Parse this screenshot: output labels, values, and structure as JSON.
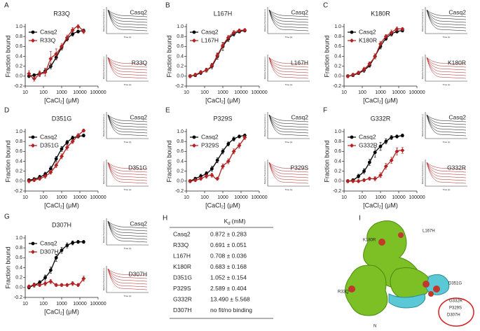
{
  "chart_data": [
    {
      "type": "line",
      "panel": "A",
      "title": "R33Q",
      "y_label": "Fraction bound",
      "x_label": "[CaCl₂] (μM)",
      "xscale": "log",
      "x": [
        16,
        31,
        62,
        125,
        250,
        500,
        1000,
        2000,
        4000,
        8000,
        16000
      ],
      "xlim": [
        10,
        100000
      ],
      "xticks": [
        10,
        100,
        1000,
        10000,
        100000
      ],
      "ylim": [
        -0.2,
        1.0
      ],
      "yticks": [
        -0.2,
        {
          "value": 0,
          "label": "0.0"
        },
        0.2,
        0.4,
        0.6,
        0.8,
        {
          "value": 1,
          "label": "1.0"
        }
      ],
      "series": [
        {
          "name": "Casq2",
          "color": "#000000",
          "marker": "circle",
          "values": [
            0.0,
            0.02,
            0.05,
            0.1,
            0.2,
            0.38,
            0.58,
            0.75,
            0.85,
            0.9,
            0.92
          ],
          "errors": [
            0.03,
            0.03,
            0.04,
            0.04,
            0.05,
            0.05,
            0.05,
            0.04,
            0.04,
            0.03,
            0.03
          ]
        },
        {
          "name": "R33Q",
          "color": "#b22222",
          "marker": "diamond",
          "values": [
            0.05,
            -0.05,
            0.05,
            0.08,
            0.35,
            0.45,
            0.6,
            0.78,
            0.93,
            1.0,
            0.9
          ],
          "errors": [
            0.06,
            0.05,
            0.06,
            0.08,
            0.15,
            0.1,
            0.06,
            0.05,
            0.05,
            0.04,
            0.04
          ]
        }
      ]
    },
    {
      "type": "line",
      "panel": "B",
      "title": "L167H",
      "y_label": "Fraction bound",
      "x_label": "[CaCl₂] (μM)",
      "xscale": "log",
      "x": [
        16,
        31,
        62,
        125,
        250,
        500,
        1000,
        2000,
        4000,
        8000,
        16000
      ],
      "xlim": [
        10,
        100000
      ],
      "xticks": [
        10,
        100,
        1000,
        10000,
        100000
      ],
      "ylim": [
        -0.2,
        1.0
      ],
      "yticks": [
        -0.2,
        {
          "value": 0,
          "label": "0.0"
        },
        0.2,
        0.4,
        0.6,
        0.8,
        {
          "value": 1,
          "label": "1.0"
        }
      ],
      "series": [
        {
          "name": "Casq2",
          "color": "#000000",
          "marker": "circle",
          "values": [
            0.0,
            0.02,
            0.07,
            0.12,
            0.2,
            0.4,
            0.6,
            0.75,
            0.85,
            0.9,
            0.92
          ],
          "errors": [
            0.03,
            0.03,
            0.04,
            0.04,
            0.05,
            0.06,
            0.08,
            0.05,
            0.04,
            0.03,
            0.03
          ]
        },
        {
          "name": "L167H",
          "color": "#b22222",
          "marker": "diamond",
          "values": [
            0.0,
            0.03,
            0.08,
            0.12,
            0.22,
            0.42,
            0.62,
            0.78,
            0.88,
            0.92,
            0.93
          ],
          "errors": [
            0.03,
            0.03,
            0.03,
            0.04,
            0.04,
            0.05,
            0.05,
            0.04,
            0.04,
            0.03,
            0.03
          ]
        }
      ]
    },
    {
      "type": "line",
      "panel": "C",
      "title": "K180R",
      "y_label": "Fraction bound",
      "x_label": "[CaCl₂] (μM)",
      "xscale": "log",
      "x": [
        16,
        31,
        62,
        125,
        250,
        500,
        1000,
        2000,
        4000,
        8000,
        16000
      ],
      "xlim": [
        10,
        100000
      ],
      "xticks": [
        10,
        100,
        1000,
        10000,
        100000
      ],
      "ylim": [
        -0.2,
        1.0
      ],
      "yticks": [
        -0.2,
        {
          "value": 0,
          "label": "0.0"
        },
        0.2,
        0.4,
        0.6,
        0.8,
        {
          "value": 1,
          "label": "1.0"
        }
      ],
      "series": [
        {
          "name": "Casq2",
          "color": "#000000",
          "marker": "circle",
          "values": [
            0.0,
            0.02,
            0.06,
            0.12,
            0.22,
            0.4,
            0.6,
            0.76,
            0.85,
            0.9,
            0.92
          ],
          "errors": [
            0.03,
            0.03,
            0.03,
            0.04,
            0.04,
            0.05,
            0.05,
            0.04,
            0.04,
            0.03,
            0.03
          ]
        },
        {
          "name": "K180R",
          "color": "#b22222",
          "marker": "diamond",
          "values": [
            0.0,
            0.03,
            0.07,
            0.14,
            0.25,
            0.4,
            0.65,
            0.8,
            0.88,
            0.95,
            0.95
          ],
          "errors": [
            0.03,
            0.03,
            0.03,
            0.04,
            0.04,
            0.05,
            0.05,
            0.04,
            0.05,
            0.04,
            0.03
          ]
        }
      ]
    },
    {
      "type": "line",
      "panel": "D",
      "title": "D351G",
      "y_label": "Fraction bound",
      "x_label": "[CaCl₂] (μM)",
      "xscale": "log",
      "x": [
        16,
        31,
        62,
        125,
        250,
        500,
        1000,
        2000,
        4000,
        8000,
        16000
      ],
      "xlim": [
        10,
        100000
      ],
      "xticks": [
        10,
        100,
        1000,
        10000,
        100000
      ],
      "ylim": [
        -0.2,
        1.0
      ],
      "yticks": [
        -0.2,
        {
          "value": 0,
          "label": "0.0"
        },
        0.2,
        0.4,
        0.6,
        0.8,
        {
          "value": 1,
          "label": "1.0"
        }
      ],
      "series": [
        {
          "name": "Casq2",
          "color": "#000000",
          "marker": "circle",
          "values": [
            0.02,
            0.04,
            0.08,
            0.14,
            0.25,
            0.45,
            0.65,
            0.78,
            0.87,
            0.9,
            0.92
          ],
          "errors": [
            0.03,
            0.03,
            0.04,
            0.04,
            0.05,
            0.05,
            0.05,
            0.04,
            0.04,
            0.03,
            0.03
          ]
        },
        {
          "name": "D351G",
          "color": "#b22222",
          "marker": "diamond",
          "values": [
            0.0,
            0.02,
            0.05,
            0.1,
            0.18,
            0.32,
            0.5,
            0.68,
            0.8,
            0.92,
            1.02
          ],
          "errors": [
            0.03,
            0.03,
            0.03,
            0.04,
            0.04,
            0.05,
            0.05,
            0.05,
            0.04,
            0.04,
            0.03
          ]
        }
      ]
    },
    {
      "type": "line",
      "panel": "E",
      "title": "P329S",
      "y_label": "Fraction bound",
      "x_label": "[CaCl₂] (μM)",
      "xscale": "log",
      "x": [
        16,
        31,
        62,
        125,
        250,
        500,
        1000,
        2000,
        4000,
        8000,
        16000
      ],
      "xlim": [
        10,
        100000
      ],
      "xticks": [
        10,
        100,
        1000,
        10000,
        100000
      ],
      "ylim": [
        -0.2,
        1.0
      ],
      "yticks": [
        -0.2,
        {
          "value": 0,
          "label": "0.0"
        },
        0.2,
        0.4,
        0.6,
        0.8,
        {
          "value": 1,
          "label": "1.0"
        }
      ],
      "series": [
        {
          "name": "Casq2",
          "color": "#000000",
          "marker": "circle",
          "values": [
            0.0,
            0.05,
            0.1,
            0.15,
            0.25,
            0.42,
            0.6,
            0.75,
            0.85,
            0.9,
            0.92
          ],
          "errors": [
            0.03,
            0.03,
            0.04,
            0.04,
            0.05,
            0.05,
            0.05,
            0.04,
            0.04,
            0.03,
            0.03
          ]
        },
        {
          "name": "P329S",
          "color": "#b22222",
          "marker": "diamond",
          "values": [
            0.0,
            0.02,
            0.05,
            0.1,
            0.12,
            0.05,
            0.3,
            0.4,
            0.6,
            0.72,
            0.88
          ],
          "errors": [
            0.03,
            0.03,
            0.03,
            0.04,
            0.04,
            0.03,
            0.05,
            0.05,
            0.05,
            0.05,
            0.04
          ]
        }
      ]
    },
    {
      "type": "line",
      "panel": "F",
      "title": "G332R",
      "y_label": "Fraction bound",
      "x_label": "[CaCl₂] (μM)",
      "xscale": "log",
      "x": [
        16,
        31,
        62,
        125,
        250,
        500,
        1000,
        2000,
        4000,
        8000,
        16000
      ],
      "xlim": [
        10,
        100000
      ],
      "xticks": [
        10,
        100,
        1000,
        10000,
        100000
      ],
      "ylim": [
        -0.2,
        1.0
      ],
      "yticks": [
        -0.2,
        {
          "value": 0,
          "label": "0.0"
        },
        0.2,
        0.4,
        0.6,
        0.8,
        {
          "value": 1,
          "label": "1.0"
        }
      ],
      "series": [
        {
          "name": "Casq2",
          "color": "#000000",
          "marker": "circle",
          "values": [
            0.0,
            0.02,
            0.1,
            0.2,
            0.38,
            0.58,
            0.7,
            0.8,
            0.88,
            0.9,
            0.92
          ],
          "errors": [
            0.03,
            0.03,
            0.04,
            0.05,
            0.06,
            0.1,
            0.08,
            0.05,
            0.04,
            0.03,
            0.03
          ]
        },
        {
          "name": "G332R",
          "color": "#b22222",
          "marker": "diamond",
          "values": [
            0.0,
            0.0,
            0.0,
            0.02,
            0.05,
            0.05,
            0.12,
            0.3,
            0.42,
            0.6,
            0.62
          ],
          "errors": [
            0.03,
            0.03,
            0.03,
            0.03,
            0.03,
            0.04,
            0.05,
            0.06,
            0.06,
            0.07,
            0.06
          ]
        }
      ]
    },
    {
      "type": "line",
      "panel": "G",
      "title": "D307H",
      "y_label": "Fraction bound",
      "x_label": "[CaCl₂] (μM)",
      "xscale": "log",
      "x": [
        16,
        31,
        62,
        125,
        250,
        500,
        1000,
        2000,
        4000,
        8000,
        16000
      ],
      "xlim": [
        10,
        100000
      ],
      "xticks": [
        10,
        100,
        1000,
        10000,
        100000
      ],
      "ylim": [
        -0.2,
        1.0
      ],
      "yticks": [
        -0.2,
        {
          "value": 0,
          "label": "0.0"
        },
        0.2,
        0.4,
        0.6,
        0.8,
        {
          "value": 1,
          "label": "1.0"
        }
      ],
      "series": [
        {
          "name": "Casq2",
          "color": "#000000",
          "marker": "circle",
          "values": [
            0.0,
            0.05,
            0.1,
            0.2,
            0.35,
            0.6,
            0.75,
            0.85,
            0.9,
            0.92,
            0.92
          ],
          "errors": [
            0.03,
            0.04,
            0.04,
            0.05,
            0.06,
            0.07,
            0.06,
            0.05,
            0.04,
            0.03,
            0.03
          ]
        },
        {
          "name": "D307H",
          "color": "#b22222",
          "marker": "diamond",
          "values": [
            0.02,
            0.05,
            0.05,
            0.08,
            0.12,
            0.05,
            0.05,
            0.05,
            0.08,
            0.05,
            0.18
          ],
          "errors": [
            0.03,
            0.03,
            0.03,
            0.04,
            0.04,
            0.03,
            0.03,
            0.03,
            0.04,
            0.03,
            0.05
          ]
        }
      ]
    }
  ],
  "inset_labels": {
    "y": "Relative fluorescence (-)",
    "x": "Time (s)"
  },
  "table": {
    "panel": "H",
    "header": {
      "symbol": "K",
      "subscript": "d",
      "unit": "(mM)"
    },
    "rows": [
      [
        "Casq2",
        "0.872 ± 0.283"
      ],
      [
        "R33Q",
        "0.691 ± 0.051"
      ],
      [
        "L167H",
        "0.708 ± 0.036"
      ],
      [
        "K180R",
        "0.683 ± 0.168"
      ],
      [
        "D351G",
        "1.052 ± 0.154"
      ],
      [
        "P329S",
        "2.589 ± 0.404"
      ],
      [
        "G332R",
        "13.490 ± 5.568"
      ],
      [
        "D307H",
        "no fit/no binding"
      ]
    ]
  },
  "structure": {
    "panel": "I",
    "labels": [
      "K180R",
      "L167H",
      "R33Q",
      "D351G",
      "G332R",
      "P329S",
      "D307H",
      "N"
    ]
  }
}
